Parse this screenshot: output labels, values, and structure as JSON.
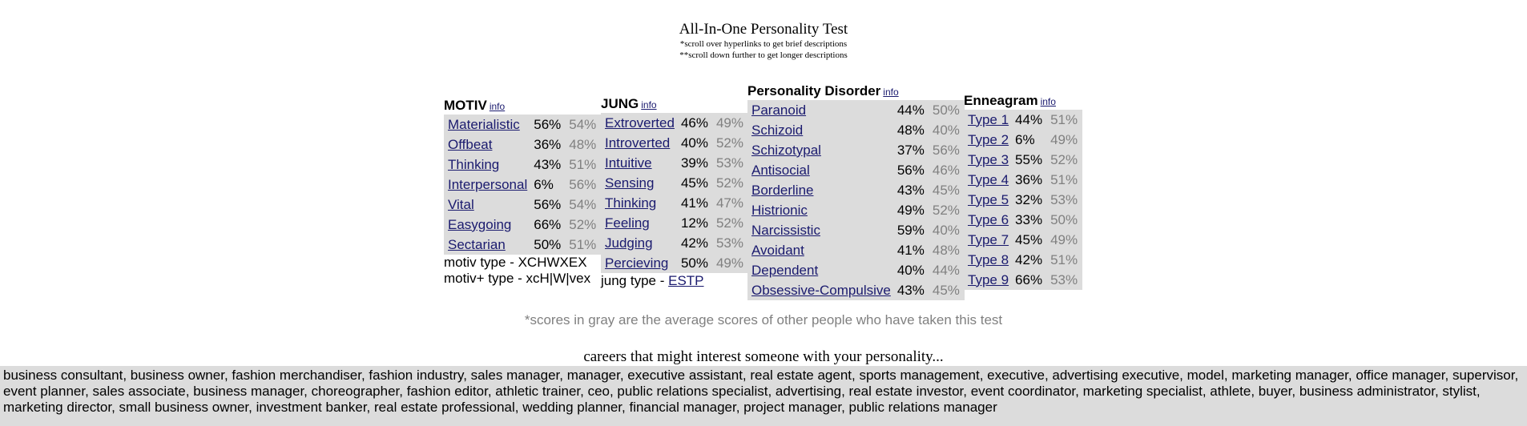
{
  "header": {
    "title": "All-In-One Personality Test",
    "note1": "*scroll over hyperlinks to get brief descriptions",
    "note2": "**scroll down further to get longer descriptions"
  },
  "info_label": "info",
  "motiv": {
    "title": "MOTIV",
    "rows": [
      {
        "trait": "Materialistic",
        "score": "56%",
        "avg": "54%"
      },
      {
        "trait": "Offbeat",
        "score": "36%",
        "avg": "48%"
      },
      {
        "trait": "Thinking",
        "score": "43%",
        "avg": "51%"
      },
      {
        "trait": "Interpersonal",
        "score": "6%",
        "avg": "56%"
      },
      {
        "trait": "Vital",
        "score": "56%",
        "avg": "54%"
      },
      {
        "trait": "Easygoing",
        "score": "66%",
        "avg": "52%"
      },
      {
        "trait": "Sectarian",
        "score": "50%",
        "avg": "51%"
      }
    ],
    "type_line": "motiv type - XCHWXEX",
    "type_plus_line": "motiv+ type - xcH|W|vex"
  },
  "jung": {
    "title": "JUNG",
    "rows": [
      {
        "trait": "Extroverted",
        "score": "46%",
        "avg": "49%"
      },
      {
        "trait": "Introverted",
        "score": "40%",
        "avg": "52%"
      },
      {
        "trait": "Intuitive",
        "score": "39%",
        "avg": "53%"
      },
      {
        "trait": "Sensing",
        "score": "45%",
        "avg": "52%"
      },
      {
        "trait": "Thinking",
        "score": "41%",
        "avg": "47%"
      },
      {
        "trait": "Feeling",
        "score": "12%",
        "avg": "52%"
      },
      {
        "trait": "Judging",
        "score": "42%",
        "avg": "53%"
      },
      {
        "trait": "Percieving",
        "score": "50%",
        "avg": "49%"
      }
    ],
    "type_prefix": "jung type - ",
    "type_value": "ESTP"
  },
  "personality_disorder": {
    "title": "Personality Disorder",
    "rows": [
      {
        "trait": "Paranoid",
        "score": "44%",
        "avg": "50%"
      },
      {
        "trait": "Schizoid",
        "score": "48%",
        "avg": "40%"
      },
      {
        "trait": "Schizotypal",
        "score": "37%",
        "avg": "56%"
      },
      {
        "trait": "Antisocial",
        "score": "56%",
        "avg": "46%"
      },
      {
        "trait": "Borderline",
        "score": "43%",
        "avg": "45%"
      },
      {
        "trait": "Histrionic",
        "score": "49%",
        "avg": "52%"
      },
      {
        "trait": "Narcissistic",
        "score": "59%",
        "avg": "40%"
      },
      {
        "trait": "Avoidant",
        "score": "41%",
        "avg": "48%"
      },
      {
        "trait": "Dependent",
        "score": "40%",
        "avg": "44%"
      },
      {
        "trait": "Obsessive-Compulsive",
        "score": "43%",
        "avg": "45%"
      }
    ]
  },
  "enneagram": {
    "title": "Enneagram",
    "rows": [
      {
        "trait": "Type 1",
        "score": "44%",
        "avg": "51%"
      },
      {
        "trait": "Type 2",
        "score": "6%",
        "avg": "49%"
      },
      {
        "trait": "Type 3",
        "score": "55%",
        "avg": "52%"
      },
      {
        "trait": "Type 4",
        "score": "36%",
        "avg": "51%"
      },
      {
        "trait": "Type 5",
        "score": "32%",
        "avg": "53%"
      },
      {
        "trait": "Type 6",
        "score": "33%",
        "avg": "50%"
      },
      {
        "trait": "Type 7",
        "score": "45%",
        "avg": "49%"
      },
      {
        "trait": "Type 8",
        "score": "42%",
        "avg": "51%"
      },
      {
        "trait": "Type 9",
        "score": "66%",
        "avg": "53%"
      }
    ]
  },
  "gray_note": "*scores in gray are the average scores of other people who have taken this test",
  "careers": {
    "title": "careers that might interest someone with your personality...",
    "list": "business consultant, business owner, fashion merchandiser, fashion industry, sales manager, manager, executive assistant, real estate agent, sports management, executive, advertising executive, model, marketing manager, office manager, supervisor, event planner, sales associate, business manager, choreographer, fashion editor, athletic trainer, ceo, public relations specialist, advertising, real estate investor, event coordinator, marketing specialist, athlete, buyer, business administrator, stylist, marketing director, small business owner, investment banker, real estate professional, wedding planner, financial manager, project manager, public relations manager"
  }
}
